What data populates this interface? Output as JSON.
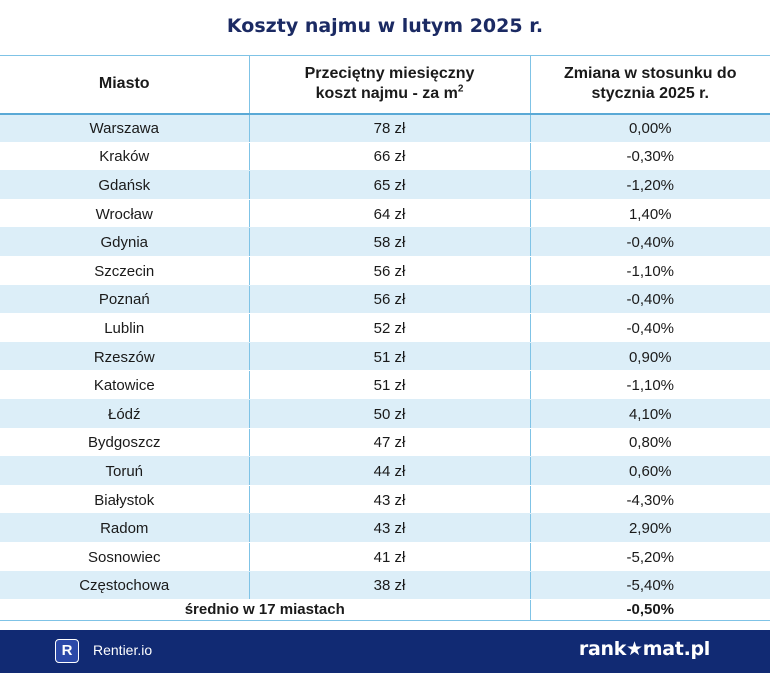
{
  "title": "Koszty najmu w lutym 2025 r.",
  "table": {
    "headers": {
      "city": "Miasto",
      "cost_line1": "Przeciętny miesięczny",
      "cost_line2": "koszt najmu - za m",
      "cost_sup": "2",
      "change_line1": "Zmiana w stosunku do",
      "change_line2": "stycznia 2025 r."
    },
    "rows": [
      {
        "city": "Warszawa",
        "cost": "78 zł",
        "change": "0,00%"
      },
      {
        "city": "Kraków",
        "cost": "66 zł",
        "change": "-0,30%"
      },
      {
        "city": "Gdańsk",
        "cost": "65 zł",
        "change": "-1,20%"
      },
      {
        "city": "Wrocław",
        "cost": "64 zł",
        "change": "1,40%"
      },
      {
        "city": "Gdynia",
        "cost": "58 zł",
        "change": "-0,40%"
      },
      {
        "city": "Szczecin",
        "cost": "56 zł",
        "change": "-1,10%"
      },
      {
        "city": "Poznań",
        "cost": "56 zł",
        "change": "-0,40%"
      },
      {
        "city": "Lublin",
        "cost": "52 zł",
        "change": "-0,40%"
      },
      {
        "city": "Rzeszów",
        "cost": "51 zł",
        "change": "0,90%"
      },
      {
        "city": "Katowice",
        "cost": "51 zł",
        "change": "-1,10%"
      },
      {
        "city": "Łódź",
        "cost": "50 zł",
        "change": "4,10%"
      },
      {
        "city": "Bydgoszcz",
        "cost": "47 zł",
        "change": "0,80%"
      },
      {
        "city": "Toruń",
        "cost": "44 zł",
        "change": "0,60%"
      },
      {
        "city": "Białystok",
        "cost": "43 zł",
        "change": "-4,30%"
      },
      {
        "city": "Radom",
        "cost": "43 zł",
        "change": "2,90%"
      },
      {
        "city": "Sosnowiec",
        "cost": "41 zł",
        "change": "-5,20%"
      },
      {
        "city": "Częstochowa",
        "cost": "38 zł",
        "change": "-5,40%"
      }
    ],
    "summary": {
      "label": "średnio w 17 miastach",
      "change": "-0,50%"
    }
  },
  "footer": {
    "rentier_icon_letter": "R",
    "rentier_name": "Rentier.io",
    "rankomat_name": "rank★mat.pl"
  },
  "colors": {
    "title": "#1b2a63",
    "row_stripe": "#dceef8",
    "grid_line": "#7fc3e6",
    "footer_bg": "#112a73"
  }
}
